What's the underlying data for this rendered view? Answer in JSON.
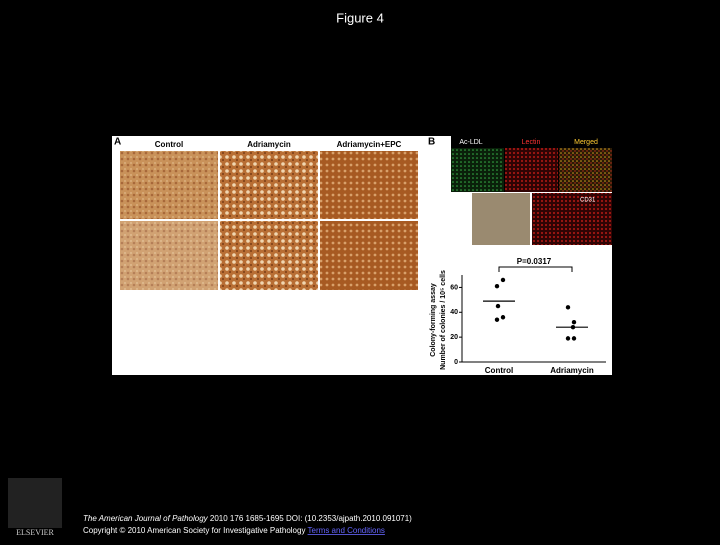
{
  "slide": {
    "title": "Figure 4"
  },
  "figure": {
    "panel_a": {
      "label": "A",
      "columns": [
        "Control",
        "Adriamycin",
        "Adriamycin+EPC"
      ]
    },
    "panel_b": {
      "label": "B",
      "columns": [
        "Ac-LDL",
        "Lectin",
        "Merged"
      ],
      "second_row_label": "CD31"
    }
  },
  "chart_data": {
    "type": "scatter",
    "y_label": [
      "Colony-forming assay",
      "Number of colonies / 10⁵ cells"
    ],
    "annotation": "P=0.0317",
    "categories": [
      "Control",
      "Adriamycin"
    ],
    "series": [
      {
        "name": "Control",
        "color": "#000000",
        "values": [
          66,
          61,
          45,
          36,
          34
        ],
        "mean": 49
      },
      {
        "name": "Adriamycin",
        "color": "#000000",
        "values": [
          44,
          32,
          28,
          19,
          19
        ],
        "mean": 28
      }
    ],
    "ylim": [
      0,
      70
    ],
    "yticks": [
      0,
      20,
      40,
      60
    ]
  },
  "citation": {
    "journal": "The American Journal of Pathology",
    "details": "2010 176 1685-1695 DOI: (10.2353/ajpath.2010.091071)",
    "copyright": "Copyright © 2010 American Society for Investigative Pathology",
    "link": "Terms and Conditions"
  },
  "logo": {
    "text": "ELSEVIER"
  }
}
